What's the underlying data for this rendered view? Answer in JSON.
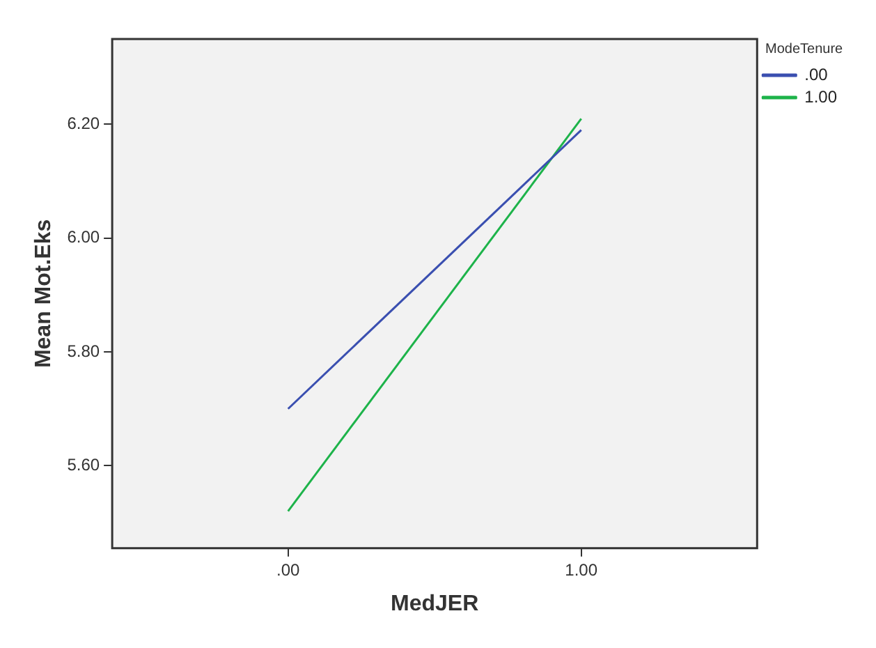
{
  "chart_data": {
    "type": "line",
    "xlabel": "MedJER",
    "ylabel": "Mean Mot.Eks",
    "legend_title": "ModeTenure",
    "x": [
      0,
      1
    ],
    "series": [
      {
        "name": ".00",
        "color": "#3a4fb0",
        "values": [
          5.7,
          6.19
        ]
      },
      {
        "name": "1.00",
        "color": "#1db34a",
        "values": [
          5.52,
          6.21
        ]
      }
    ],
    "xlim": [
      -0.6,
      1.6
    ],
    "xticks": [
      {
        "value": 0,
        "label": ".00"
      },
      {
        "value": 1,
        "label": "1.00"
      }
    ],
    "ylim": [
      5.455,
      6.35
    ],
    "yticks": [
      {
        "value": 5.6,
        "label": "5.60"
      },
      {
        "value": 5.8,
        "label": "5.80"
      },
      {
        "value": 6.0,
        "label": "6.00"
      },
      {
        "value": 6.2,
        "label": "6.20"
      }
    ],
    "grid": false,
    "legend": "top right",
    "marker": "none",
    "line_style": "solid"
  }
}
